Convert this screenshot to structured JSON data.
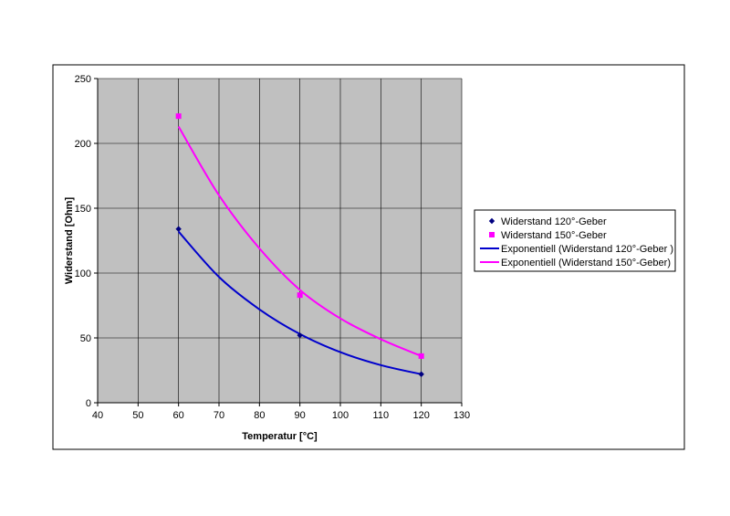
{
  "chart_data": {
    "type": "scatter",
    "title": "",
    "xlabel": "Temperatur [°C]",
    "ylabel": "Widerstand [Ohm]",
    "xlim": [
      40,
      130
    ],
    "ylim": [
      0,
      250
    ],
    "x_ticks": [
      40,
      50,
      60,
      70,
      80,
      90,
      100,
      110,
      120,
      130
    ],
    "y_ticks": [
      0,
      50,
      100,
      150,
      200,
      250
    ],
    "grid": true,
    "plot_background": "#c0c0c0",
    "legend_position": "right",
    "series": [
      {
        "name": "Widerstand 120°-Geber",
        "kind": "points",
        "marker": "diamond",
        "color": "#000080",
        "x": [
          60,
          90,
          120
        ],
        "y": [
          134,
          52,
          22
        ]
      },
      {
        "name": "Widerstand 150°-Geber",
        "kind": "points",
        "marker": "square",
        "color": "#ff00ff",
        "x": [
          60,
          90,
          120
        ],
        "y": [
          221,
          83,
          36
        ]
      },
      {
        "name": "Exponentiell (Widerstand 120°-Geber )",
        "kind": "trendline",
        "color": "#0000cc",
        "x": [
          60,
          70,
          80,
          90,
          100,
          110,
          120
        ],
        "y": [
          132,
          97,
          72,
          53,
          39,
          29,
          22
        ]
      },
      {
        "name": "Exponentiell (Widerstand 150°-Geber)",
        "kind": "trendline",
        "color": "#ff00ff",
        "x": [
          60,
          70,
          80,
          90,
          100,
          110,
          120
        ],
        "y": [
          213,
          160,
          119,
          87,
          65,
          49,
          36
        ]
      }
    ]
  }
}
